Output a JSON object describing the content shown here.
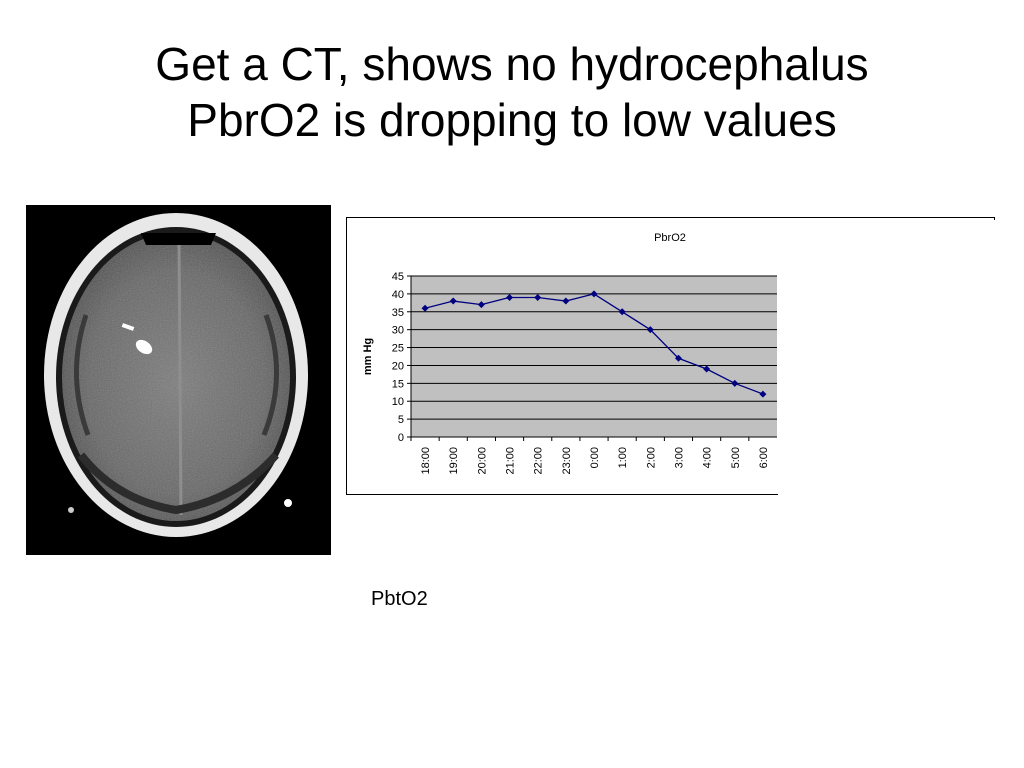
{
  "slide": {
    "title_line1": "Get a CT, shows no hydrocephalus",
    "title_line2": "PbrO2 is dropping to low values",
    "caption": "PbtO2"
  },
  "ct_image": {
    "icon": "ct-brain-scan"
  },
  "chart_data": {
    "type": "line",
    "title": "PbrO2",
    "xlabel": "",
    "ylabel": "mm Hg",
    "categories": [
      "18:00",
      "19:00",
      "20:00",
      "21:00",
      "22:00",
      "23:00",
      "0:00",
      "1:00",
      "2:00",
      "3:00",
      "4:00",
      "5:00",
      "6:00"
    ],
    "series": [
      {
        "values": [
          36,
          38,
          37,
          39,
          39,
          38,
          40,
          35,
          30,
          22,
          19,
          15,
          12
        ]
      }
    ],
    "ylim": [
      0,
      45
    ],
    "yticks": [
      0,
      5,
      10,
      15,
      20,
      25,
      30,
      35,
      40,
      45
    ],
    "grid": true,
    "plot_background": "#c0c0c0",
    "line_color": "#000080"
  }
}
